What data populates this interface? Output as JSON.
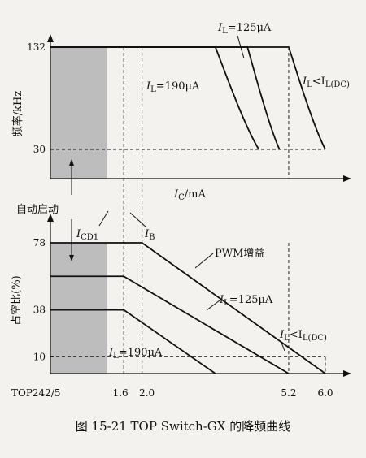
{
  "caption": "图 15-21    TOP Switch-GX 的降频曲线",
  "auto_restart_label": "自动启动",
  "colors": {
    "ink": "#111111",
    "shade": "#bdbdbd",
    "background": "#f4f2ee"
  },
  "chart_data": [
    {
      "type": "line",
      "panel": "top",
      "ylabel": "频率/kHz",
      "xlabel_main": "I",
      "xlabel_sub": "C",
      "xlabel_unit": "/mA",
      "yticks": [
        30,
        132
      ],
      "yticks_text": [
        "30",
        "132"
      ],
      "ylim": [
        0,
        132
      ],
      "shaded_region_x": [
        0,
        1.6
      ],
      "series": [
        {
          "name": "I_L=190μA",
          "label_main": "I",
          "label_sub": "L",
          "label_rest": "=190μA",
          "x": [
            0,
            3.6,
            4.55
          ],
          "y": [
            132,
            132,
            30
          ]
        },
        {
          "name": "I_L=125μA",
          "label_main": "I",
          "label_sub": "L",
          "label_rest": "=125μA",
          "x": [
            0,
            4.3,
            5.0
          ],
          "y": [
            132,
            132,
            30
          ]
        },
        {
          "name": "I_L<I_L(DC)",
          "label_main": "I",
          "label_sub": "L",
          "label_rest": "<I",
          "label_sub2": "L(DC)",
          "x": [
            0,
            5.2,
            6.0
          ],
          "y": [
            132,
            132,
            30
          ]
        }
      ]
    },
    {
      "type": "line",
      "panel": "bottom",
      "ylabel": "占空比(%)",
      "xlim": [
        0,
        6.0
      ],
      "xticks": [
        1.6,
        2.0,
        5.2,
        6.0
      ],
      "xticks_text": [
        "1.6",
        "2.0",
        "5.2",
        "6.0"
      ],
      "xtick_prefix": "TOP242/5",
      "yticks": [
        10,
        38,
        78
      ],
      "yticks_text": [
        "10",
        "38",
        "78"
      ],
      "ylim": [
        0,
        78
      ],
      "shaded_region_x": [
        0,
        1.6
      ],
      "annotations": [
        {
          "text_main": "I",
          "text_sub": "CD1",
          "x": 1.6
        },
        {
          "text_main": "I",
          "text_sub": "B",
          "x": 2.0
        },
        {
          "text": "PWM增益"
        }
      ],
      "series": [
        {
          "name": "I_L<I_L(DC)",
          "label_main": "I",
          "label_sub": "L",
          "label_rest": "<I",
          "label_sub2": "L(DC)",
          "x": [
            0,
            2.0,
            6.0
          ],
          "y": [
            78,
            78,
            0
          ]
        },
        {
          "name": "I_L=125μA",
          "label_main": "I",
          "label_sub": "L",
          "label_rest": "=125μA",
          "x": [
            0,
            1.6,
            5.2
          ],
          "y": [
            58,
            58,
            0
          ]
        },
        {
          "name": "I_L=190μA",
          "label_main": "I",
          "label_sub": "L",
          "label_rest": "=190μA",
          "x": [
            0,
            1.6,
            3.6
          ],
          "y": [
            38,
            38,
            0
          ]
        }
      ]
    }
  ]
}
